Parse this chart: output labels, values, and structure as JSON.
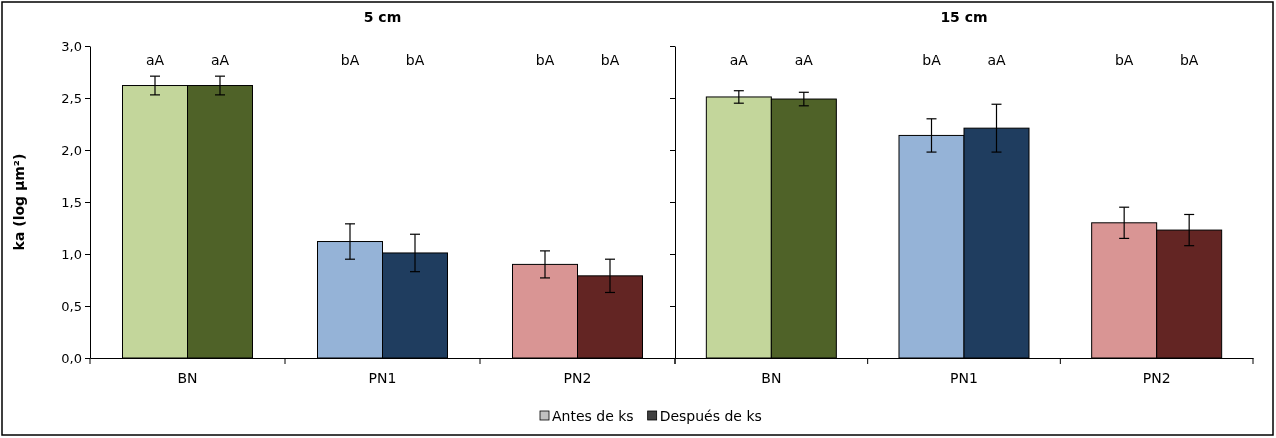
{
  "chart_data": [
    {
      "type": "bar",
      "title": "5 cm",
      "ylabel": "ka (log μm²)",
      "categories": [
        "BN",
        "PN1",
        "PN2"
      ],
      "ylim": [
        0,
        3
      ],
      "yticks": [
        {
          "value": 0,
          "label": "0,0"
        },
        {
          "value": 0.5,
          "label": "0,5"
        },
        {
          "value": 1,
          "label": "1,0"
        },
        {
          "value": 1.5,
          "label": "1,5"
        },
        {
          "value": 2,
          "label": "2,0"
        },
        {
          "value": 2.5,
          "label": "2,5"
        },
        {
          "value": 3,
          "label": "3,0"
        }
      ],
      "legend": "bottom",
      "series": [
        {
          "name": "Antes de ks",
          "color": "#c0c0c0",
          "colors": [
            "#c3d69b",
            "#95b3d7",
            "#d99594"
          ],
          "values": [
            2.62,
            1.12,
            0.9
          ],
          "errors": [
            0.09,
            0.17,
            0.13
          ]
        },
        {
          "name": "Después de ks",
          "color": "#404040",
          "colors": [
            "#4f6228",
            "#1f3d5f",
            "#632523"
          ],
          "values": [
            2.62,
            1.01,
            0.79
          ],
          "errors": [
            0.09,
            0.18,
            0.16
          ]
        }
      ],
      "annotations": [
        "aA",
        "aA",
        "bA",
        "bA",
        "bA",
        "bA"
      ]
    },
    {
      "type": "bar",
      "title": "15 cm",
      "categories": [
        "BN",
        "PN1",
        "PN2"
      ],
      "ylim": [
        0,
        3
      ],
      "yticks": [
        {
          "value": 0,
          "label": null
        },
        {
          "value": 0.5,
          "label": null
        },
        {
          "value": 1,
          "label": null
        },
        {
          "value": 1.5,
          "label": null
        },
        {
          "value": 2,
          "label": null
        },
        {
          "value": 2.5,
          "label": null
        },
        {
          "value": 3,
          "label": null
        }
      ],
      "tick_labels": "x",
      "series": [
        {
          "colors": [
            "#c3d69b",
            "#95b3d7",
            "#d99594"
          ],
          "values": [
            2.51,
            2.14,
            1.3
          ],
          "errors": [
            0.06,
            0.16,
            0.15
          ]
        },
        {
          "colors": [
            "#4f6228",
            "#1f3d5f",
            "#632523"
          ],
          "values": [
            2.49,
            2.21,
            1.23
          ],
          "errors": [
            0.065,
            0.23,
            0.15
          ]
        }
      ],
      "annotations": [
        "aA",
        "aA",
        "bA",
        "aA",
        "bA",
        "bA"
      ]
    }
  ]
}
